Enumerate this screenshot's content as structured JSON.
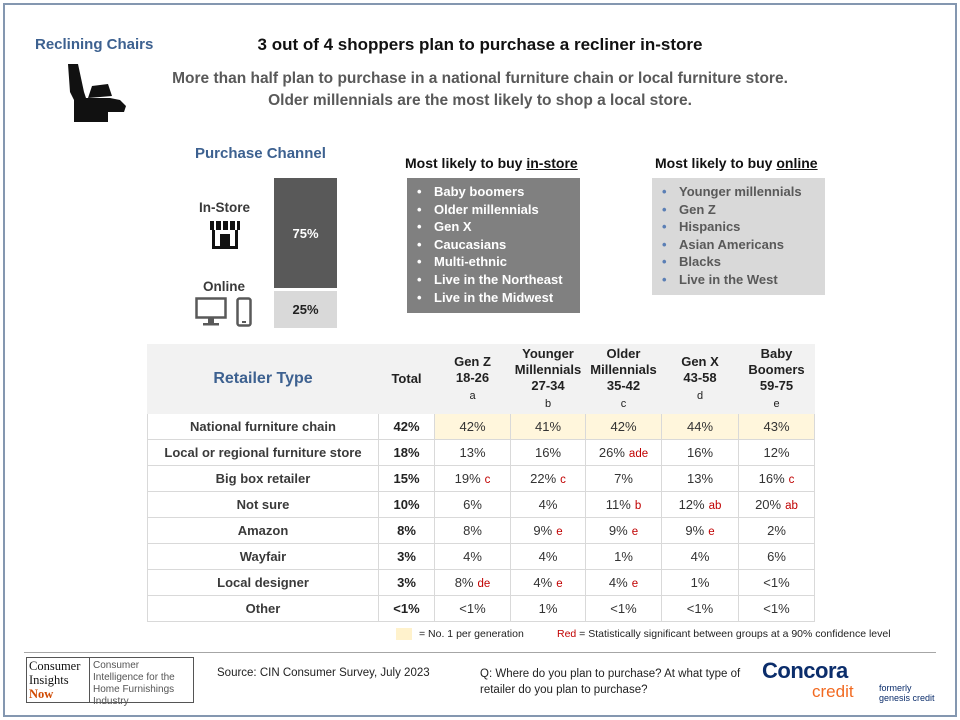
{
  "header": {
    "section_title": "Reclining Chairs",
    "headline": "3 out of 4 shoppers plan to purchase a recliner in-store",
    "subhead": "More than half plan to purchase in a national furniture chain or local furniture store. Older millennials are the most likely to shop a local store."
  },
  "purchase_channel": {
    "title": "Purchase Channel",
    "in_store_label": "In-Store",
    "online_label": "Online",
    "in_store_pct": "75%",
    "online_pct": "25%"
  },
  "in_store_box": {
    "title_prefix": "Most likely to buy ",
    "title_underlined": "in-store",
    "items": [
      "Baby boomers",
      "Older millennials",
      "Gen X",
      "Caucasians",
      "Multi-ethnic",
      "Live in the Northeast",
      "Live in the Midwest"
    ]
  },
  "online_box": {
    "title_prefix": "Most likely to buy ",
    "title_underlined": "online",
    "items": [
      "Younger millennials",
      "Gen Z",
      "Hispanics",
      "Asian Americans",
      "Blacks",
      "Live in the West"
    ]
  },
  "retailer_table": {
    "title": "Retailer Type",
    "total_header": "Total",
    "columns": [
      {
        "lines": [
          "Gen Z",
          "18-26"
        ],
        "letter": "a"
      },
      {
        "lines": [
          "Younger",
          "Millennials",
          "27-34"
        ],
        "letter": "b"
      },
      {
        "lines": [
          "Older",
          "Millennials",
          "35-42"
        ],
        "letter": "c"
      },
      {
        "lines": [
          "Gen X",
          "43-58"
        ],
        "letter": "d"
      },
      {
        "lines": [
          "Baby",
          "Boomers",
          "59-75"
        ],
        "letter": "e"
      }
    ],
    "rows": [
      {
        "label": "National furniture chain",
        "total": "42%",
        "cells": [
          {
            "v": "42%",
            "sig": "",
            "hl": true
          },
          {
            "v": "41%",
            "sig": "",
            "hl": true
          },
          {
            "v": "42%",
            "sig": "",
            "hl": true
          },
          {
            "v": "44%",
            "sig": "",
            "hl": true
          },
          {
            "v": "43%",
            "sig": "",
            "hl": true
          }
        ]
      },
      {
        "label": "Local or regional furniture store",
        "total": "18%",
        "cells": [
          {
            "v": "13%",
            "sig": ""
          },
          {
            "v": "16%",
            "sig": ""
          },
          {
            "v": "26%",
            "sig": "ade"
          },
          {
            "v": "16%",
            "sig": ""
          },
          {
            "v": "12%",
            "sig": ""
          }
        ]
      },
      {
        "label": "Big box retailer",
        "total": "15%",
        "cells": [
          {
            "v": "19%",
            "sig": "c"
          },
          {
            "v": "22%",
            "sig": "c"
          },
          {
            "v": "7%",
            "sig": ""
          },
          {
            "v": "13%",
            "sig": ""
          },
          {
            "v": "16%",
            "sig": "c"
          }
        ]
      },
      {
        "label": "Not sure",
        "total": "10%",
        "cells": [
          {
            "v": "6%",
            "sig": ""
          },
          {
            "v": "4%",
            "sig": ""
          },
          {
            "v": "11%",
            "sig": "b"
          },
          {
            "v": "12%",
            "sig": "ab"
          },
          {
            "v": "20%",
            "sig": "ab"
          }
        ]
      },
      {
        "label": "Amazon",
        "total": "8%",
        "cells": [
          {
            "v": "8%",
            "sig": ""
          },
          {
            "v": "9%",
            "sig": "e"
          },
          {
            "v": "9%",
            "sig": "e"
          },
          {
            "v": "9%",
            "sig": "e"
          },
          {
            "v": "2%",
            "sig": ""
          }
        ]
      },
      {
        "label": "Wayfair",
        "total": "3%",
        "cells": [
          {
            "v": "4%",
            "sig": ""
          },
          {
            "v": "4%",
            "sig": ""
          },
          {
            "v": "1%",
            "sig": ""
          },
          {
            "v": "4%",
            "sig": ""
          },
          {
            "v": "6%",
            "sig": ""
          }
        ]
      },
      {
        "label": "Local designer",
        "total": "3%",
        "cells": [
          {
            "v": "8%",
            "sig": "de"
          },
          {
            "v": "4%",
            "sig": "e"
          },
          {
            "v": "4%",
            "sig": "e"
          },
          {
            "v": "1%",
            "sig": ""
          },
          {
            "v": "<1%",
            "sig": ""
          }
        ]
      },
      {
        "label": "Other",
        "total": "<1%",
        "cells": [
          {
            "v": "<1%",
            "sig": ""
          },
          {
            "v": "1%",
            "sig": ""
          },
          {
            "v": "<1%",
            "sig": ""
          },
          {
            "v": "<1%",
            "sig": ""
          },
          {
            "v": "<1%",
            "sig": ""
          }
        ]
      }
    ]
  },
  "legend": {
    "highlight_text": "= No. 1 per generation",
    "red_word": "Red",
    "red_text": " = Statistically significant between groups at a 90% confidence level"
  },
  "footer": {
    "cin_logo_lines": [
      "Consumer",
      "Insights",
      "Now"
    ],
    "cin_logo_tagline": "Consumer Intelligence for the Home Furnishings Industry",
    "source": "Source: CIN Consumer Survey, July 2023",
    "question": "Q: Where do you plan to purchase? At what type of retailer do you plan to purchase?",
    "concora_name": "Concora",
    "concora_credit": "credit",
    "formerly": [
      "formerly",
      "genesis credit"
    ]
  },
  "colors": {
    "accent_blue": "#3d6190",
    "significance_red": "#c00000",
    "highlight": "#fff6dc",
    "in_store_bar": "#595959",
    "online_bar": "#d9d9d9",
    "concora_navy": "#0b2d6b",
    "concora_orange": "#f26a21"
  }
}
